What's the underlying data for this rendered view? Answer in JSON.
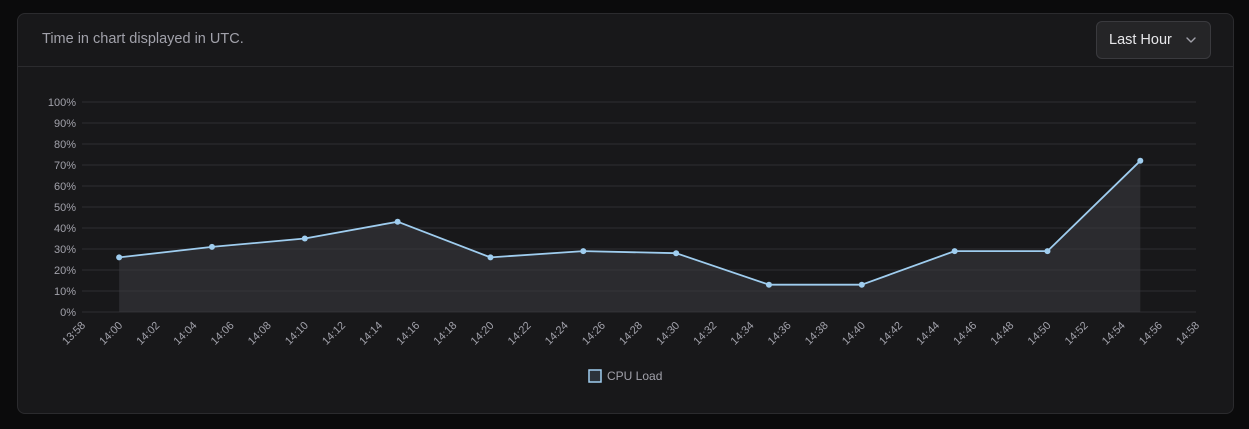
{
  "header": {
    "text": "Time in chart displayed in UTC.",
    "range_select": {
      "selected": "Last Hour",
      "icon": "chevron-down-icon"
    }
  },
  "colors": {
    "line": "#9fcdef",
    "fill": "rgba(60,60,66,0.55)",
    "grid": "#2e2e32",
    "text": "#a1a1aa"
  },
  "chart_data": {
    "type": "area",
    "x_ticks": [
      "13:58",
      "14:00",
      "14:02",
      "14:04",
      "14:06",
      "14:08",
      "14:10",
      "14:12",
      "14:14",
      "14:16",
      "14:18",
      "14:20",
      "14:22",
      "14:24",
      "14:26",
      "14:28",
      "14:30",
      "14:32",
      "14:34",
      "14:36",
      "14:38",
      "14:40",
      "14:42",
      "14:44",
      "14:46",
      "14:48",
      "14:50",
      "14:52",
      "14:54",
      "14:56",
      "14:58"
    ],
    "y_ticks": [
      "0%",
      "10%",
      "20%",
      "30%",
      "40%",
      "50%",
      "60%",
      "70%",
      "80%",
      "90%",
      "100%"
    ],
    "ylim": [
      0,
      100
    ],
    "xlim": [
      "13:58",
      "14:58"
    ],
    "grid": true,
    "legend_position": "bottom-center",
    "series": [
      {
        "name": "CPU Load",
        "points": [
          {
            "x": "14:00",
            "y": 26
          },
          {
            "x": "14:05",
            "y": 31
          },
          {
            "x": "14:10",
            "y": 35
          },
          {
            "x": "14:15",
            "y": 43
          },
          {
            "x": "14:20",
            "y": 26
          },
          {
            "x": "14:25",
            "y": 29
          },
          {
            "x": "14:30",
            "y": 28
          },
          {
            "x": "14:35",
            "y": 13
          },
          {
            "x": "14:40",
            "y": 13
          },
          {
            "x": "14:45",
            "y": 29
          },
          {
            "x": "14:50",
            "y": 29
          },
          {
            "x": "14:55",
            "y": 72
          }
        ]
      }
    ]
  }
}
